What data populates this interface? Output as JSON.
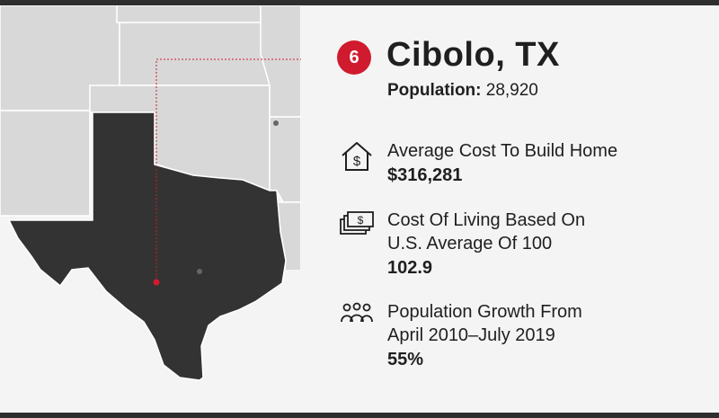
{
  "map": {
    "region": "Texas",
    "colors": {
      "state": "#333333",
      "neighbors": "#d8d8d8",
      "borders": "#ffffff",
      "marker": "#d01b2e",
      "secondary_marker": "#666666"
    }
  },
  "header": {
    "rank": "6",
    "city": "Cibolo, TX",
    "population_label": "Population:",
    "population_value": "28,920"
  },
  "stats": [
    {
      "icon": "house-dollar-icon",
      "label": "Average Cost To Build Home",
      "value": "$316,281"
    },
    {
      "icon": "money-stack-icon",
      "label_lines": [
        "Cost Of Living Based On",
        "U.S. Average Of 100"
      ],
      "value": "102.9"
    },
    {
      "icon": "people-group-icon",
      "label_lines": [
        "Population Growth From",
        "April 2010–July 2019"
      ],
      "value": "55%"
    }
  ],
  "colors": {
    "accent": "#d01b2e",
    "text": "#1f1f1f",
    "background": "#f4f4f4",
    "frame": "#2e2e2e"
  }
}
